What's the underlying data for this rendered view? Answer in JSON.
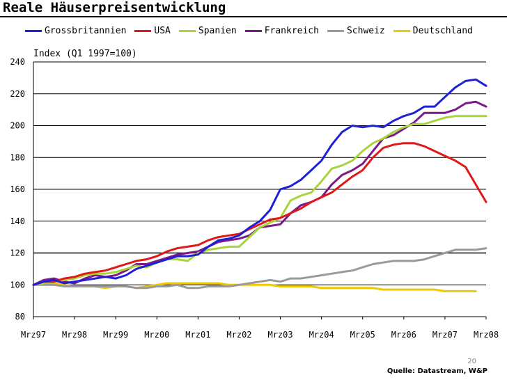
{
  "chart_data": {
    "type": "line",
    "title": "Reale Häuserpreisentwicklung",
    "ylabel": "Index (Q1 1997=100)",
    "xlabel": "",
    "ylim": [
      80,
      240
    ],
    "yticks": [
      80,
      100,
      120,
      140,
      160,
      180,
      200,
      220,
      240
    ],
    "xlim": [
      1997,
      2008
    ],
    "xtick_labels": [
      "Mrz97",
      "Mrz98",
      "Mrz99",
      "Mrz00",
      "Mrz01",
      "Mrz02",
      "Mrz03",
      "Mrz04",
      "Mrz05",
      "Mrz06",
      "Mrz07",
      "Mrz08"
    ],
    "series": [
      {
        "name": "Grossbritannien",
        "color": "#1f1fd6",
        "x": [
          1997,
          1997.25,
          1997.5,
          1997.75,
          1998,
          1998.25,
          1998.5,
          1998.75,
          1999,
          1999.25,
          1999.5,
          1999.75,
          2000,
          2000.25,
          2000.5,
          2000.75,
          2001,
          2001.25,
          2001.5,
          2001.75,
          2002,
          2002.25,
          2002.5,
          2002.75,
          2003,
          2003.25,
          2003.5,
          2003.75,
          2004,
          2004.25,
          2004.5,
          2004.75,
          2005,
          2005.25,
          2005.5,
          2005.75,
          2006,
          2006.25,
          2006.5,
          2006.75,
          2007,
          2007.25,
          2007.5,
          2007.75,
          2008
        ],
        "y": [
          100,
          102,
          103,
          101,
          102,
          103,
          104,
          105,
          104,
          106,
          110,
          112,
          114,
          116,
          118,
          118,
          119,
          124,
          128,
          129,
          131,
          136,
          140,
          147,
          160,
          162,
          166,
          172,
          178,
          188,
          196,
          200,
          199,
          200,
          199,
          203,
          206,
          208,
          212,
          212,
          218,
          224,
          228,
          229,
          225
        ]
      },
      {
        "name": "USA",
        "color": "#e01818",
        "x": [
          1997,
          1997.25,
          1997.5,
          1997.75,
          1998,
          1998.25,
          1998.5,
          1998.75,
          1999,
          1999.25,
          1999.5,
          1999.75,
          2000,
          2000.25,
          2000.5,
          2000.75,
          2001,
          2001.25,
          2001.5,
          2001.75,
          2002,
          2002.25,
          2002.5,
          2002.75,
          2003,
          2003.25,
          2003.5,
          2003.75,
          2004,
          2004.25,
          2004.5,
          2004.75,
          2005,
          2005.25,
          2005.5,
          2005.75,
          2006,
          2006.25,
          2006.5,
          2006.75,
          2007,
          2007.25,
          2007.5,
          2007.75,
          2008
        ],
        "y": [
          100,
          102,
          102,
          104,
          105,
          107,
          108,
          109,
          111,
          113,
          115,
          116,
          118,
          121,
          123,
          124,
          125,
          128,
          130,
          131,
          132,
          135,
          138,
          141,
          142,
          145,
          148,
          152,
          155,
          158,
          163,
          168,
          172,
          180,
          186,
          188,
          189,
          189,
          187,
          184,
          181,
          178,
          174,
          163,
          152
        ]
      },
      {
        "name": "Spanien",
        "color": "#a8d43a",
        "x": [
          1997,
          1997.25,
          1997.5,
          1997.75,
          1998,
          1998.25,
          1998.5,
          1998.75,
          1999,
          1999.25,
          1999.5,
          1999.75,
          2000,
          2000.25,
          2000.5,
          2000.75,
          2001,
          2001.25,
          2001.5,
          2001.75,
          2002,
          2002.25,
          2002.5,
          2002.75,
          2003,
          2003.25,
          2003.5,
          2003.75,
          2004,
          2004.25,
          2004.5,
          2004.75,
          2005,
          2005.25,
          2005.5,
          2005.75,
          2006,
          2006.25,
          2006.5,
          2006.75,
          2007,
          2007.25,
          2007.5,
          2007.75,
          2008
        ],
        "y": [
          100,
          101,
          102,
          103,
          104,
          106,
          107,
          107,
          108,
          110,
          112,
          111,
          114,
          116,
          116,
          115,
          120,
          122,
          123,
          124,
          124,
          130,
          136,
          139,
          142,
          153,
          156,
          158,
          165,
          173,
          175,
          178,
          184,
          189,
          192,
          196,
          199,
          201,
          201,
          203,
          205,
          206,
          206,
          206,
          206
        ]
      },
      {
        "name": "Frankreich",
        "color": "#7a1a88",
        "x": [
          1997,
          1997.25,
          1997.5,
          1997.75,
          1998,
          1998.25,
          1998.5,
          1998.75,
          1999,
          1999.25,
          1999.5,
          1999.75,
          2000,
          2000.25,
          2000.5,
          2000.75,
          2001,
          2001.25,
          2001.5,
          2001.75,
          2002,
          2002.25,
          2002.5,
          2002.75,
          2003,
          2003.25,
          2003.5,
          2003.75,
          2004,
          2004.25,
          2004.5,
          2004.75,
          2005,
          2005.25,
          2005.5,
          2005.75,
          2006,
          2006.25,
          2006.5,
          2006.75,
          2007,
          2007.25,
          2007.5,
          2007.75,
          2008
        ],
        "y": [
          100,
          103,
          104,
          102,
          101,
          104,
          106,
          105,
          106,
          109,
          113,
          113,
          115,
          117,
          119,
          120,
          121,
          124,
          127,
          128,
          129,
          131,
          136,
          137,
          138,
          145,
          150,
          152,
          155,
          163,
          169,
          172,
          176,
          184,
          192,
          194,
          198,
          202,
          208,
          208,
          208,
          210,
          214,
          215,
          212
        ]
      },
      {
        "name": "Schweiz",
        "color": "#9a9a9a",
        "x": [
          1997,
          1997.25,
          1997.5,
          1997.75,
          1998,
          1998.25,
          1998.5,
          1998.75,
          1999,
          1999.25,
          1999.5,
          1999.75,
          2000,
          2000.25,
          2000.5,
          2000.75,
          2001,
          2001.25,
          2001.5,
          2001.75,
          2002,
          2002.25,
          2002.5,
          2002.75,
          2003,
          2003.25,
          2003.5,
          2003.75,
          2004,
          2004.25,
          2004.5,
          2004.75,
          2005,
          2005.25,
          2005.5,
          2005.75,
          2006,
          2006.25,
          2006.5,
          2006.75,
          2007,
          2007.25,
          2007.5,
          2007.75,
          2008
        ],
        "y": [
          100,
          100,
          100,
          99,
          99,
          99,
          99,
          99,
          99,
          99,
          98,
          98,
          99,
          99,
          100,
          98,
          98,
          99,
          99,
          99,
          100,
          101,
          102,
          103,
          102,
          104,
          104,
          105,
          106,
          107,
          108,
          109,
          111,
          113,
          114,
          115,
          115,
          115,
          116,
          118,
          120,
          122,
          122,
          122,
          123
        ]
      },
      {
        "name": "Deutschland",
        "color": "#f0c800",
        "x": [
          1997,
          1997.25,
          1997.5,
          1997.75,
          1998,
          1998.25,
          1998.5,
          1998.75,
          1999,
          1999.25,
          1999.5,
          1999.75,
          2000,
          2000.25,
          2000.5,
          2000.75,
          2001,
          2001.25,
          2001.5,
          2001.75,
          2002,
          2002.25,
          2002.5,
          2002.75,
          2003,
          2003.25,
          2003.5,
          2003.75,
          2004,
          2004.25,
          2004.5,
          2004.75,
          2005,
          2005.25,
          2005.5,
          2005.75,
          2006,
          2006.25,
          2006.5,
          2006.75,
          2007,
          2007.25,
          2007.5,
          2007.75
        ],
        "y": [
          100,
          101,
          101,
          100,
          99,
          99,
          99,
          98,
          99,
          99,
          98,
          99,
          100,
          101,
          101,
          101,
          101,
          101,
          101,
          100,
          100,
          100,
          100,
          100,
          99,
          99,
          99,
          99,
          98,
          98,
          98,
          98,
          98,
          98,
          97,
          97,
          97,
          97,
          97,
          97,
          96,
          96,
          96,
          96
        ]
      }
    ]
  },
  "footer": {
    "page_number": "20",
    "source": "Quelle: Datastream, W&P"
  }
}
